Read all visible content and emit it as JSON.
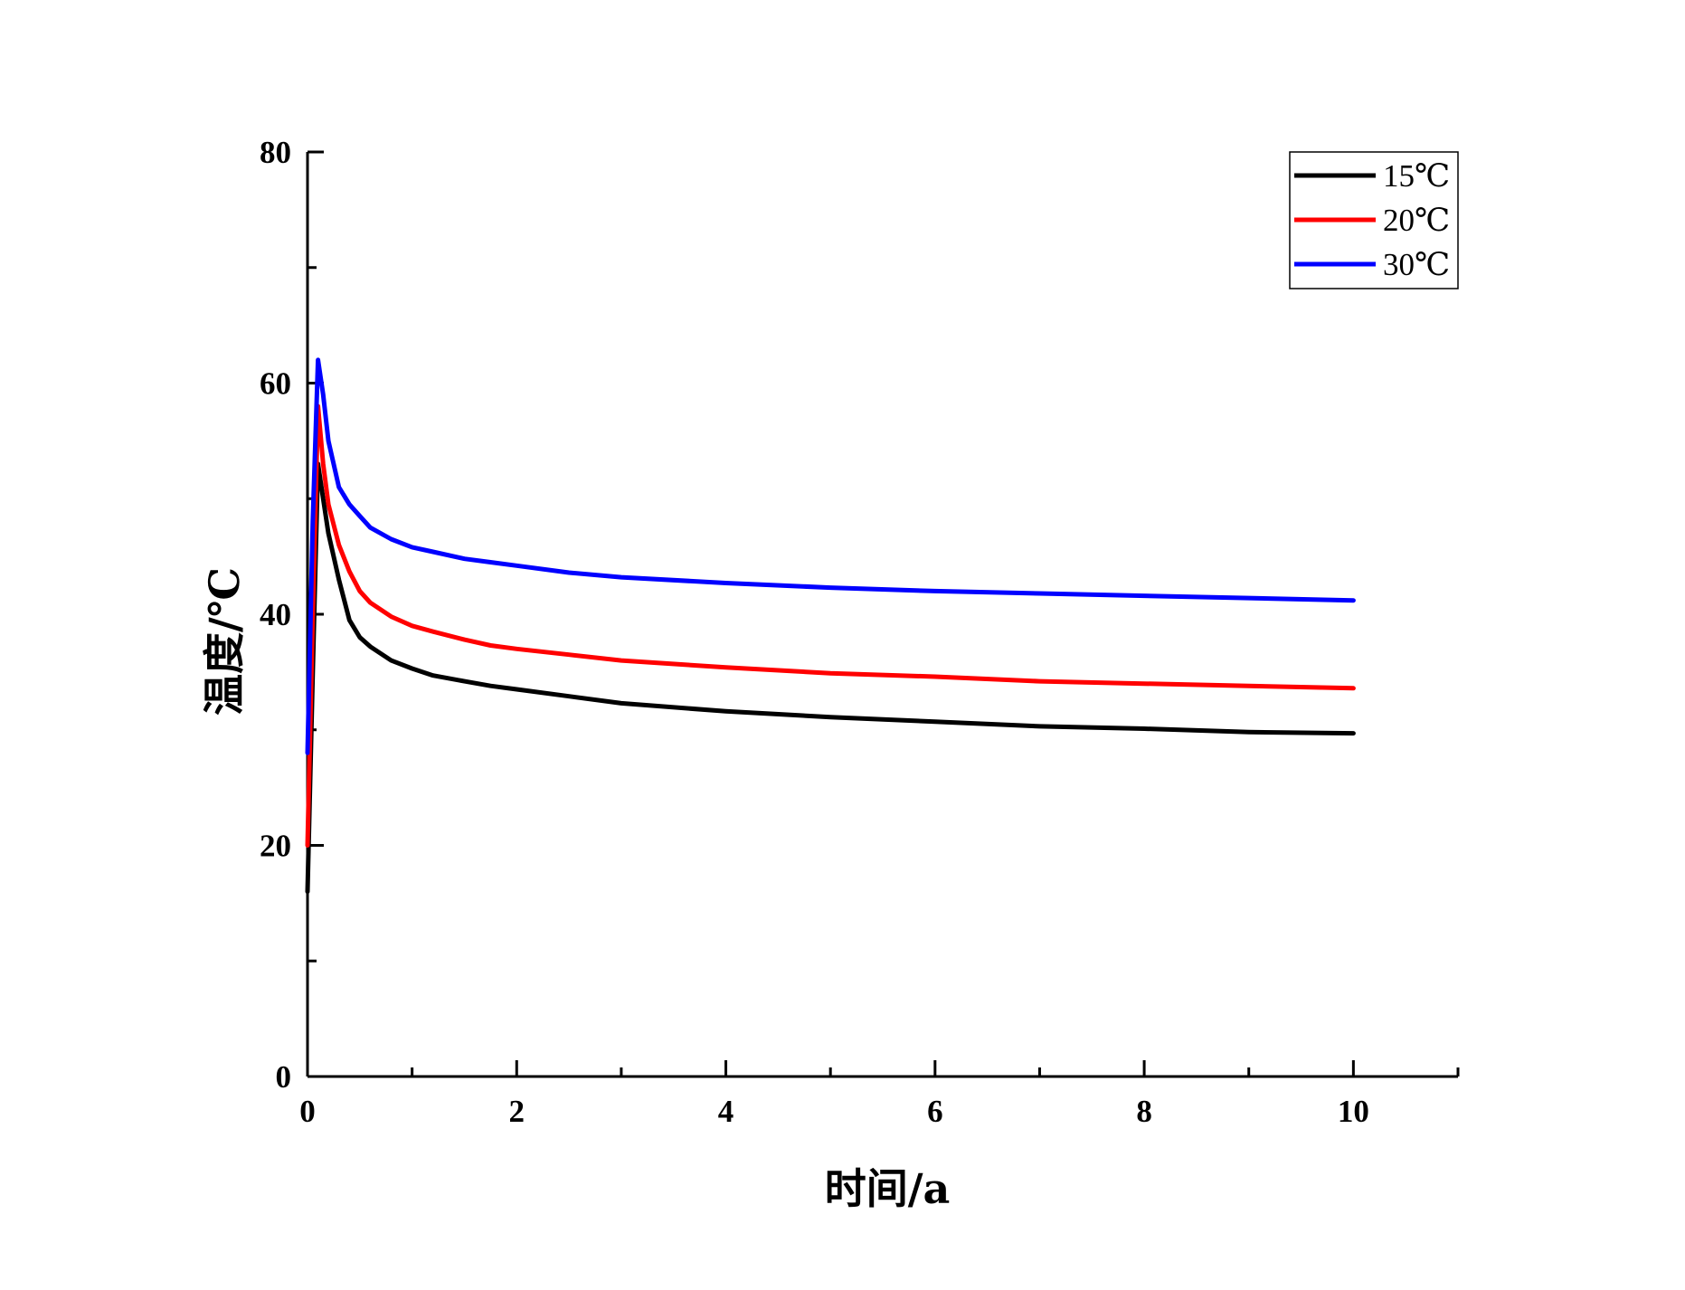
{
  "chart_data": {
    "type": "line",
    "xlabel": "时间/a",
    "ylabel": "温度/℃",
    "xlim": [
      0,
      11
    ],
    "ylim": [
      0,
      80
    ],
    "xticks": [
      0,
      2,
      4,
      6,
      8,
      10
    ],
    "yticks": [
      0,
      20,
      40,
      60,
      80
    ],
    "grid": false,
    "legend_position": "top-right",
    "series": [
      {
        "name": "15℃",
        "color": "#000000",
        "x": [
          0,
          0.05,
          0.1,
          0.15,
          0.2,
          0.3,
          0.4,
          0.5,
          0.6,
          0.8,
          1.0,
          1.2,
          1.5,
          1.75,
          2.0,
          2.5,
          3.0,
          4.0,
          5.0,
          6.0,
          7.0,
          8.0,
          9.0,
          10.0
        ],
        "y": [
          16,
          35,
          53,
          50,
          47,
          43,
          39.5,
          38,
          37.2,
          36,
          35.3,
          34.7,
          34.2,
          33.8,
          33.5,
          32.9,
          32.3,
          31.6,
          31.1,
          30.7,
          30.3,
          30.1,
          29.8,
          29.7
        ]
      },
      {
        "name": "20℃",
        "color": "#ff0000",
        "x": [
          0,
          0.05,
          0.1,
          0.15,
          0.2,
          0.3,
          0.4,
          0.5,
          0.6,
          0.8,
          1.0,
          1.2,
          1.5,
          1.75,
          2.0,
          2.5,
          3.0,
          4.0,
          5.0,
          6.0,
          7.0,
          8.0,
          9.0,
          10.0
        ],
        "y": [
          20,
          40,
          58,
          53,
          49.5,
          46,
          43.7,
          42,
          41,
          39.8,
          39,
          38.5,
          37.8,
          37.3,
          37,
          36.5,
          36,
          35.4,
          34.9,
          34.6,
          34.2,
          34,
          33.8,
          33.6
        ]
      },
      {
        "name": "30℃",
        "color": "#0000ff",
        "x": [
          0,
          0.05,
          0.1,
          0.15,
          0.2,
          0.3,
          0.4,
          0.5,
          0.6,
          0.8,
          1.0,
          1.2,
          1.5,
          1.75,
          2.0,
          2.5,
          3.0,
          4.0,
          5.0,
          6.0,
          7.0,
          8.0,
          9.0,
          10.0
        ],
        "y": [
          28,
          48,
          62,
          59,
          55,
          51,
          49.5,
          48.5,
          47.5,
          46.5,
          45.8,
          45.4,
          44.8,
          44.5,
          44.2,
          43.6,
          43.2,
          42.7,
          42.3,
          42,
          41.8,
          41.6,
          41.4,
          41.2
        ]
      }
    ]
  }
}
